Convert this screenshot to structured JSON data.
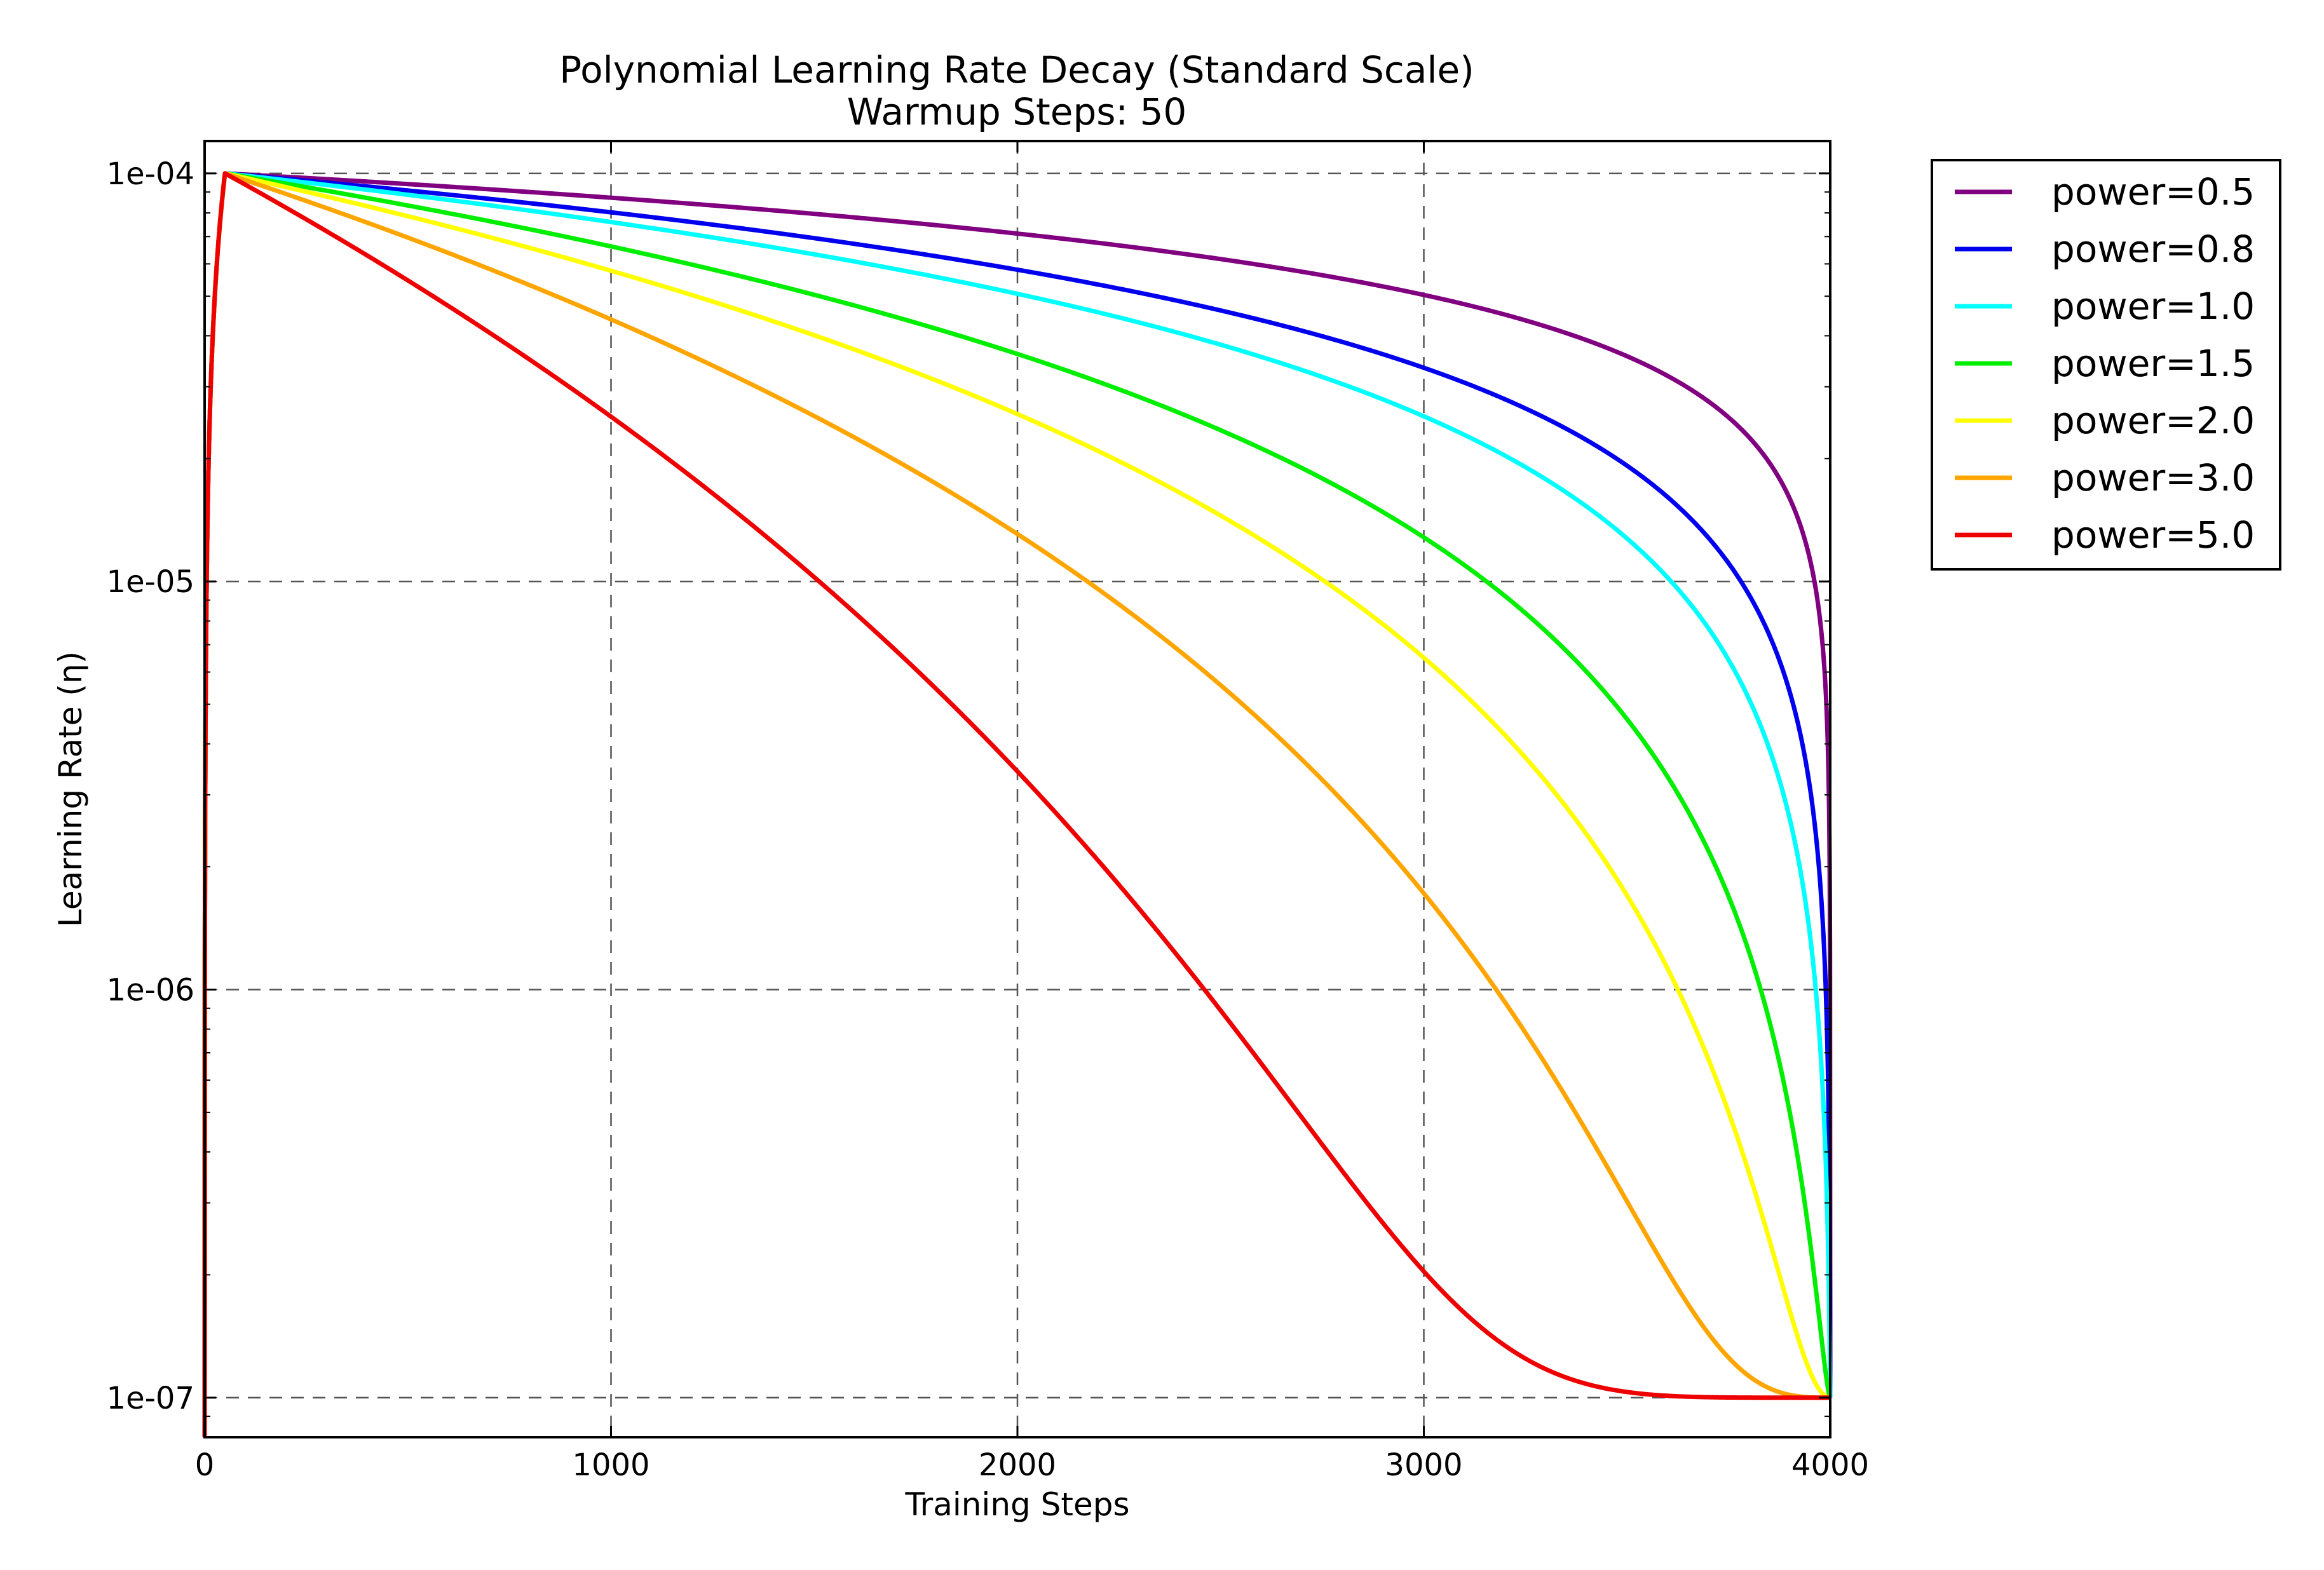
{
  "chart_data": {
    "type": "line",
    "title": "Polynomial Learning Rate Decay (Standard Scale)",
    "subtitle": "Warmup Steps: 50",
    "xlabel": "Training Steps",
    "ylabel": "Learning Rate (η)",
    "x_scale": "linear",
    "y_scale": "log",
    "xlim": [
      0,
      4000
    ],
    "ylim": [
      8e-08,
      0.00012
    ],
    "x_ticks": [
      0,
      1000,
      2000,
      3000,
      4000
    ],
    "x_tick_labels": [
      "0",
      "1000",
      "2000",
      "3000",
      "4000"
    ],
    "y_ticks": [
      1e-07,
      1e-06,
      1e-05,
      0.0001
    ],
    "y_tick_labels": [
      "1e-07",
      "1e-06",
      "1e-05",
      "1e-04"
    ],
    "grid": true,
    "legend_position": "outside-right-top",
    "schedule": {
      "total_steps": 4000,
      "warmup_steps": 50,
      "max_lr": 0.0001,
      "min_lr": 1e-07
    },
    "series": [
      {
        "name": "power=0.5",
        "power": 0.5,
        "color": "#800080"
      },
      {
        "name": "power=0.8",
        "power": 0.8,
        "color": "#0000ee"
      },
      {
        "name": "power=1.0",
        "power": 1.0,
        "color": "#00ffff"
      },
      {
        "name": "power=1.5",
        "power": 1.5,
        "color": "#00ee00"
      },
      {
        "name": "power=2.0",
        "power": 2.0,
        "color": "#ffff00"
      },
      {
        "name": "power=3.0",
        "power": 3.0,
        "color": "#ffa500"
      },
      {
        "name": "power=5.0",
        "power": 5.0,
        "color": "#ee0000"
      }
    ]
  }
}
